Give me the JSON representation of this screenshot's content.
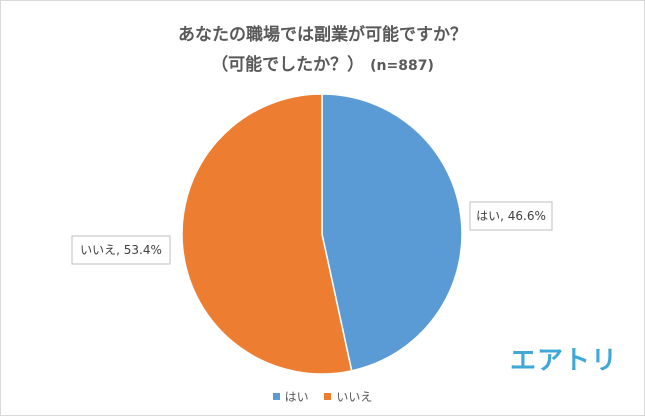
{
  "chart_data": {
    "type": "pie",
    "title_line1": "あなたの職場では副業が可能ですか？",
    "title_line2": "（可能でしたか？）",
    "sample_size": "(n=887)",
    "slices": [
      {
        "name": "はい",
        "value": 46.6,
        "label": "はい, 46.6%",
        "color": "#5b9bd5"
      },
      {
        "name": "いいえ",
        "value": 53.4,
        "label": "いいえ, 53.4%",
        "color": "#ed7d31"
      }
    ],
    "legend": {
      "position": "bottom",
      "items": [
        "はい",
        "いいえ"
      ]
    }
  },
  "logo": {
    "text": "エアトリ",
    "color": "#40a8d8"
  }
}
